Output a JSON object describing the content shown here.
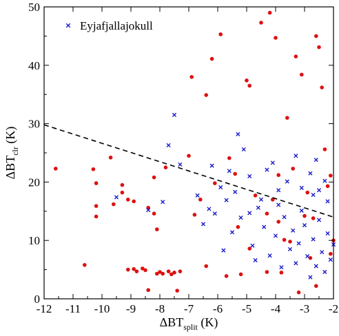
{
  "chart_data": {
    "type": "scatter",
    "xlabel": {
      "main": "ΔBT",
      "sub": "split",
      "unit": " (K)"
    },
    "ylabel": {
      "main": "ΔBT",
      "sub": "clr",
      "unit": " (K)"
    },
    "xlim": [
      -12,
      -2
    ],
    "ylim": [
      0,
      50
    ],
    "x_ticks": [
      -12,
      -11,
      -10,
      -9,
      -8,
      -7,
      -6,
      -5,
      -4,
      -3,
      -2
    ],
    "y_ticks": [
      0,
      10,
      20,
      30,
      40,
      50
    ],
    "grid": false,
    "legend": {
      "position": "top-left",
      "entries": [
        "Eyjafjallajokull"
      ]
    },
    "colors": {
      "eyja": "#1a1acc",
      "other": "#dd1111",
      "line": "#000000"
    },
    "threshold_line": {
      "style": "dashed",
      "points": [
        [
          -12,
          29.8
        ],
        [
          -2,
          14
        ]
      ]
    },
    "series": [
      {
        "name": "",
        "marker": "circle",
        "color": "#dd1111",
        "points": [
          [
            -11.6,
            22.3
          ],
          [
            -10.6,
            5.8
          ],
          [
            -10.3,
            22.2
          ],
          [
            -10.2,
            19.8
          ],
          [
            -10.2,
            15.9
          ],
          [
            -10.2,
            14.1
          ],
          [
            -9.7,
            24.2
          ],
          [
            -9.6,
            16.2
          ],
          [
            -9.3,
            19.5
          ],
          [
            -9.3,
            18.2
          ],
          [
            -9.1,
            17.0
          ],
          [
            -9.1,
            5.0
          ],
          [
            -8.9,
            5.1
          ],
          [
            -8.9,
            16.7
          ],
          [
            -8.8,
            4.7
          ],
          [
            -8.6,
            5.2
          ],
          [
            -8.5,
            4.9
          ],
          [
            -8.4,
            1.5
          ],
          [
            -8.4,
            15.6
          ],
          [
            -8.2,
            20.8
          ],
          [
            -8.2,
            14.6
          ],
          [
            -8.1,
            4.3
          ],
          [
            -8.1,
            11.9
          ],
          [
            -8.0,
            4.6
          ],
          [
            -7.9,
            4.3
          ],
          [
            -7.7,
            4.7
          ],
          [
            -7.6,
            4.2
          ],
          [
            -7.5,
            4.5
          ],
          [
            -7.4,
            1.4
          ],
          [
            -7.3,
            4.7
          ],
          [
            -7.0,
            24.5
          ],
          [
            -6.9,
            38.0
          ],
          [
            -6.6,
            17.0
          ],
          [
            -6.4,
            34.9
          ],
          [
            -6.4,
            5.6
          ],
          [
            -6.2,
            41.1
          ],
          [
            -6.1,
            19.8
          ],
          [
            -5.9,
            45.3
          ],
          [
            -5.7,
            3.9
          ],
          [
            -5.6,
            24.1
          ],
          [
            -5.4,
            21.4
          ],
          [
            -5.2,
            4.2
          ],
          [
            -5.0,
            37.4
          ],
          [
            -4.9,
            36.5
          ],
          [
            -4.9,
            8.6
          ],
          [
            -4.7,
            17.7
          ],
          [
            -4.5,
            47.3
          ],
          [
            -4.3,
            14.6
          ],
          [
            -4.3,
            4.6
          ],
          [
            -4.2,
            49.0
          ],
          [
            -4.0,
            44.7
          ],
          [
            -3.9,
            13.2
          ],
          [
            -3.7,
            10.1
          ],
          [
            -3.6,
            31.0
          ],
          [
            -3.5,
            9.8
          ],
          [
            -3.3,
            41.5
          ],
          [
            -3.2,
            1.1
          ],
          [
            -3.1,
            38.4
          ],
          [
            -3.0,
            14.2
          ],
          [
            -2.9,
            18.2
          ],
          [
            -2.8,
            7.0
          ],
          [
            -2.6,
            45.0
          ],
          [
            -2.6,
            2.2
          ],
          [
            -2.5,
            43.1
          ],
          [
            -2.4,
            36.2
          ],
          [
            -2.3,
            25.6
          ],
          [
            -2.2,
            19.3
          ],
          [
            -2.1,
            21.1
          ],
          [
            -2.1,
            7.7
          ],
          [
            -2.0,
            10.0
          ],
          [
            -3.8,
            4.5
          ],
          [
            -5.3,
            12.3
          ],
          [
            -6.8,
            14.4
          ],
          [
            -7.8,
            22.5
          ],
          [
            -3.4,
            22.3
          ],
          [
            -4.1,
            17.0
          ],
          [
            -2.7,
            13.8
          ],
          [
            -3.9,
            21.2
          ]
        ]
      },
      {
        "name": "Eyjafjallajokull",
        "marker": "cross",
        "color": "#1a1acc",
        "points": [
          [
            -9.5,
            17.4
          ],
          [
            -8.4,
            15.2
          ],
          [
            -7.9,
            16.6
          ],
          [
            -7.7,
            26.3
          ],
          [
            -7.5,
            31.5
          ],
          [
            -7.3,
            23.0
          ],
          [
            -6.5,
            12.8
          ],
          [
            -6.2,
            22.8
          ],
          [
            -6.1,
            14.6
          ],
          [
            -5.9,
            19.1
          ],
          [
            -5.6,
            21.9
          ],
          [
            -5.3,
            28.2
          ],
          [
            -5.1,
            25.6
          ],
          [
            -4.9,
            21.0
          ],
          [
            -4.6,
            15.6
          ],
          [
            -4.3,
            22.1
          ],
          [
            -4.1,
            23.3
          ],
          [
            -3.9,
            18.6
          ],
          [
            -3.6,
            20.1
          ],
          [
            -3.3,
            24.5
          ],
          [
            -3.1,
            19.0
          ],
          [
            -2.8,
            21.5
          ],
          [
            -2.6,
            23.8
          ],
          [
            -2.3,
            20.2
          ],
          [
            -2.2,
            16.7
          ],
          [
            -5.8,
            8.3
          ],
          [
            -5.5,
            11.4
          ],
          [
            -5.2,
            13.9
          ],
          [
            -4.8,
            9.1
          ],
          [
            -4.7,
            6.6
          ],
          [
            -4.4,
            12.3
          ],
          [
            -4.2,
            7.4
          ],
          [
            -4.0,
            10.8
          ],
          [
            -3.8,
            5.4
          ],
          [
            -3.7,
            14.0
          ],
          [
            -3.5,
            8.5
          ],
          [
            -3.4,
            11.7
          ],
          [
            -3.3,
            6.1
          ],
          [
            -3.2,
            9.5
          ],
          [
            -3.0,
            12.6
          ],
          [
            -2.9,
            7.3
          ],
          [
            -2.8,
            3.7
          ],
          [
            -2.7,
            10.2
          ],
          [
            -2.6,
            5.6
          ],
          [
            -2.5,
            13.5
          ],
          [
            -2.4,
            8.0
          ],
          [
            -2.3,
            4.6
          ],
          [
            -2.2,
            11.2
          ],
          [
            -2.1,
            6.7
          ],
          [
            -2.0,
            9.3
          ],
          [
            -6.7,
            17.7
          ],
          [
            -6.3,
            15.4
          ],
          [
            -5.7,
            16.9
          ],
          [
            -5.4,
            18.3
          ],
          [
            -4.5,
            17.0
          ],
          [
            -4.9,
            14.7
          ],
          [
            -3.9,
            16.1
          ],
          [
            -3.1,
            15.1
          ],
          [
            -2.7,
            17.8
          ],
          [
            -2.5,
            18.6
          ]
        ]
      }
    ]
  }
}
